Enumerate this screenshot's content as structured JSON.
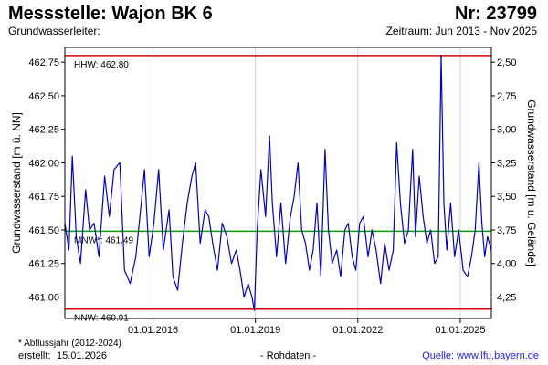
{
  "header": {
    "title": "Messstelle: Wajon BK 6",
    "number": "Nr: 23799",
    "aquifer_label": "Grundwasserleiter:",
    "period": "Zeitraum: Jun 2013 - Nov 2025"
  },
  "footer": {
    "footnote": "* Abflussjahr (2012-2024)",
    "created_label": "erstellt:",
    "created_date": "15.01.2026",
    "raw_data": "- Rohdaten -",
    "source": "Quelle: www.lfu.bayern.de"
  },
  "colors": {
    "series": "#0000cc",
    "hhw": "#e00000",
    "nnw": "#e00000",
    "mnw": "#00a000",
    "frame": "#000000"
  },
  "chart_data": {
    "type": "line",
    "ylabel": "Grundwasserstand [m ü. NN]",
    "ylabel_right": "Grundwasserstand [m u. Gelände]",
    "ylim": [
      460.84,
      462.86
    ],
    "xlim": [
      "2013-06-01",
      "2025-11-30"
    ],
    "yticks": [
      "462,75",
      "462,50",
      "462,25",
      "462,00",
      "461,75",
      "461,50",
      "461,25",
      "461,00"
    ],
    "ytick_values": [
      462.75,
      462.5,
      462.25,
      462.0,
      461.75,
      461.5,
      461.25,
      461.0
    ],
    "right_yticks": [
      "2,50",
      "2,75",
      "3,00",
      "3,25",
      "3,50",
      "3,75",
      "4,00",
      "4,25"
    ],
    "right_ytick_values": [
      2.5,
      2.75,
      3.0,
      3.25,
      3.5,
      3.75,
      4.0,
      4.25
    ],
    "xticks": [
      "01.01.2016",
      "01.01.2019",
      "01.01.2022",
      "01.01.2025"
    ],
    "xtick_values": [
      "2016-01-01",
      "2019-01-01",
      "2022-01-01",
      "2025-01-01"
    ],
    "reference_lines": [
      {
        "label": "HHW: 462.80",
        "value": 462.8,
        "color": "#e00000"
      },
      {
        "label": "MNW*: 461.49",
        "value": 461.49,
        "color": "#00a000"
      },
      {
        "label": "NNW: 460.91",
        "value": 460.91,
        "color": "#e00000"
      }
    ],
    "series": [
      {
        "values": [
          {
            "x": "2013-06-01",
            "y": 461.55
          },
          {
            "x": "2013-07-15",
            "y": 461.35
          },
          {
            "x": "2013-08-20",
            "y": 462.05
          },
          {
            "x": "2013-10-01",
            "y": 461.45
          },
          {
            "x": "2013-11-15",
            "y": 461.25
          },
          {
            "x": "2014-01-10",
            "y": 461.8
          },
          {
            "x": "2014-02-20",
            "y": 461.5
          },
          {
            "x": "2014-04-10",
            "y": 461.55
          },
          {
            "x": "2014-06-01",
            "y": 461.3
          },
          {
            "x": "2014-08-01",
            "y": 461.9
          },
          {
            "x": "2014-09-20",
            "y": 461.6
          },
          {
            "x": "2014-11-10",
            "y": 461.95
          },
          {
            "x": "2015-01-10",
            "y": 462.0
          },
          {
            "x": "2015-03-01",
            "y": 461.2
          },
          {
            "x": "2015-05-01",
            "y": 461.1
          },
          {
            "x": "2015-07-01",
            "y": 461.3
          },
          {
            "x": "2015-08-20",
            "y": 461.65
          },
          {
            "x": "2015-10-01",
            "y": 461.95
          },
          {
            "x": "2015-11-20",
            "y": 461.3
          },
          {
            "x": "2016-01-10",
            "y": 461.55
          },
          {
            "x": "2016-03-01",
            "y": 461.95
          },
          {
            "x": "2016-04-20",
            "y": 461.35
          },
          {
            "x": "2016-06-20",
            "y": 461.65
          },
          {
            "x": "2016-08-01",
            "y": 461.15
          },
          {
            "x": "2016-09-20",
            "y": 461.05
          },
          {
            "x": "2016-11-10",
            "y": 461.4
          },
          {
            "x": "2017-01-01",
            "y": 461.7
          },
          {
            "x": "2017-02-20",
            "y": 461.9
          },
          {
            "x": "2017-04-01",
            "y": 462.0
          },
          {
            "x": "2017-05-20",
            "y": 461.4
          },
          {
            "x": "2017-07-10",
            "y": 461.65
          },
          {
            "x": "2017-08-20",
            "y": 461.6
          },
          {
            "x": "2017-10-01",
            "y": 461.4
          },
          {
            "x": "2017-11-20",
            "y": 461.2
          },
          {
            "x": "2018-01-10",
            "y": 461.55
          },
          {
            "x": "2018-03-01",
            "y": 461.45
          },
          {
            "x": "2018-04-20",
            "y": 461.25
          },
          {
            "x": "2018-06-10",
            "y": 461.35
          },
          {
            "x": "2018-07-20",
            "y": 461.2
          },
          {
            "x": "2018-09-01",
            "y": 461.0
          },
          {
            "x": "2018-10-15",
            "y": 461.1
          },
          {
            "x": "2018-11-25",
            "y": 461.0
          },
          {
            "x": "2018-12-20",
            "y": 460.9
          },
          {
            "x": "2019-01-20",
            "y": 461.5
          },
          {
            "x": "2019-03-01",
            "y": 461.95
          },
          {
            "x": "2019-04-20",
            "y": 461.6
          },
          {
            "x": "2019-06-01",
            "y": 462.2
          },
          {
            "x": "2019-07-01",
            "y": 461.7
          },
          {
            "x": "2019-08-15",
            "y": 461.3
          },
          {
            "x": "2019-10-01",
            "y": 461.7
          },
          {
            "x": "2019-11-20",
            "y": 461.25
          },
          {
            "x": "2020-01-10",
            "y": 461.6
          },
          {
            "x": "2020-02-20",
            "y": 461.75
          },
          {
            "x": "2020-04-01",
            "y": 462.0
          },
          {
            "x": "2020-05-10",
            "y": 461.5
          },
          {
            "x": "2020-06-20",
            "y": 461.4
          },
          {
            "x": "2020-08-01",
            "y": 461.2
          },
          {
            "x": "2020-09-10",
            "y": 461.35
          },
          {
            "x": "2020-10-20",
            "y": 461.7
          },
          {
            "x": "2020-12-01",
            "y": 461.15
          },
          {
            "x": "2021-01-15",
            "y": 462.1
          },
          {
            "x": "2021-02-20",
            "y": 461.5
          },
          {
            "x": "2021-04-01",
            "y": 461.25
          },
          {
            "x": "2021-05-20",
            "y": 461.35
          },
          {
            "x": "2021-07-01",
            "y": 461.15
          },
          {
            "x": "2021-08-15",
            "y": 461.5
          },
          {
            "x": "2021-09-20",
            "y": 461.55
          },
          {
            "x": "2021-11-01",
            "y": 461.3
          },
          {
            "x": "2021-12-10",
            "y": 461.2
          },
          {
            "x": "2022-01-20",
            "y": 461.55
          },
          {
            "x": "2022-03-01",
            "y": 461.6
          },
          {
            "x": "2022-04-20",
            "y": 461.3
          },
          {
            "x": "2022-06-01",
            "y": 461.5
          },
          {
            "x": "2022-07-15",
            "y": 461.35
          },
          {
            "x": "2022-09-01",
            "y": 461.1
          },
          {
            "x": "2022-10-15",
            "y": 461.4
          },
          {
            "x": "2022-12-01",
            "y": 461.2
          },
          {
            "x": "2023-01-15",
            "y": 461.35
          },
          {
            "x": "2023-02-20",
            "y": 462.15
          },
          {
            "x": "2023-04-01",
            "y": 461.7
          },
          {
            "x": "2023-05-15",
            "y": 461.4
          },
          {
            "x": "2023-06-25",
            "y": 461.5
          },
          {
            "x": "2023-08-10",
            "y": 462.1
          },
          {
            "x": "2023-09-10",
            "y": 461.45
          },
          {
            "x": "2023-10-20",
            "y": 461.9
          },
          {
            "x": "2023-12-01",
            "y": 461.6
          },
          {
            "x": "2024-01-10",
            "y": 461.4
          },
          {
            "x": "2024-02-20",
            "y": 461.5
          },
          {
            "x": "2024-04-01",
            "y": 461.25
          },
          {
            "x": "2024-05-10",
            "y": 461.3
          },
          {
            "x": "2024-06-10",
            "y": 462.8
          },
          {
            "x": "2024-07-10",
            "y": 461.7
          },
          {
            "x": "2024-08-10",
            "y": 461.35
          },
          {
            "x": "2024-09-20",
            "y": 461.7
          },
          {
            "x": "2024-11-01",
            "y": 461.3
          },
          {
            "x": "2024-12-15",
            "y": 461.5
          },
          {
            "x": "2025-02-01",
            "y": 461.2
          },
          {
            "x": "2025-03-20",
            "y": 461.15
          },
          {
            "x": "2025-05-01",
            "y": 461.3
          },
          {
            "x": "2025-06-10",
            "y": 461.5
          },
          {
            "x": "2025-07-20",
            "y": 462.0
          },
          {
            "x": "2025-08-20",
            "y": 461.55
          },
          {
            "x": "2025-09-20",
            "y": 461.3
          },
          {
            "x": "2025-10-20",
            "y": 461.45
          },
          {
            "x": "2025-11-30",
            "y": 461.35
          }
        ]
      }
    ]
  }
}
